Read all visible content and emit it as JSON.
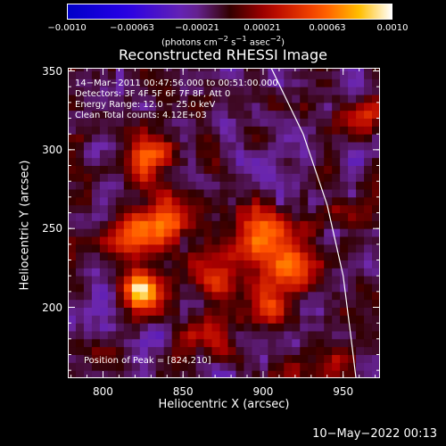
{
  "colorbar": {
    "ticks": [
      "−0.0010",
      "−0.00063",
      "−0.00021",
      "0.00021",
      "0.00063",
      "0.0010"
    ],
    "units_html": "(photons cm<sup>−2</sup> s<sup>−1</sup> asec<sup>−2</sup>)"
  },
  "annotations": {
    "line1": "14−Mar−2011 00:47:56.000 to 00:51:00.000",
    "line2": "Detectors: 3F 4F 5F 6F 7F 8F, Att 0",
    "line3": "Energy Range: 12.0 − 25.0 keV",
    "line4": "Clean     Total counts: 4.12E+03",
    "peak": "Position of Peak = [824,210]"
  },
  "footer": {
    "date": "10−May−2022 00:13"
  },
  "chart_data": {
    "type": "heatmap",
    "title": "Reconstructed RHESSI Image",
    "xlabel": "Heliocentric X (arcsec)",
    "ylabel": "Heliocentric Y (arcsec)",
    "xlim": [
      778,
      973
    ],
    "ylim": [
      155,
      352
    ],
    "zlim": [
      -0.001,
      0.001
    ],
    "xticks": [
      800,
      850,
      900,
      950
    ],
    "yticks": [
      200,
      250,
      300,
      350
    ],
    "limb_curve": [
      [
        905,
        352
      ],
      [
        925,
        310
      ],
      [
        940,
        265
      ],
      [
        950,
        220
      ],
      [
        955,
        180
      ],
      [
        958,
        155
      ]
    ],
    "peak": [
      824,
      210
    ],
    "sources": [
      {
        "x": 824,
        "y": 210,
        "amplitude": 0.001,
        "sigma": 9
      },
      {
        "x": 835,
        "y": 255,
        "amplitude": 0.0007,
        "sigma": 12
      },
      {
        "x": 830,
        "y": 295,
        "amplitude": 0.00055,
        "sigma": 10
      },
      {
        "x": 815,
        "y": 245,
        "amplitude": 0.0005,
        "sigma": 10
      },
      {
        "x": 900,
        "y": 245,
        "amplitude": 0.00065,
        "sigma": 13
      },
      {
        "x": 905,
        "y": 205,
        "amplitude": 0.0006,
        "sigma": 11
      },
      {
        "x": 920,
        "y": 225,
        "amplitude": 0.0005,
        "sigma": 10
      },
      {
        "x": 870,
        "y": 215,
        "amplitude": 0.00045,
        "sigma": 10
      },
      {
        "x": 870,
        "y": 185,
        "amplitude": 0.0004,
        "sigma": 10
      },
      {
        "x": 945,
        "y": 165,
        "amplitude": 0.0004,
        "sigma": 8
      },
      {
        "x": 965,
        "y": 320,
        "amplitude": 0.0006,
        "sigma": 8
      },
      {
        "x": 960,
        "y": 260,
        "amplitude": 0.00035,
        "sigma": 8
      }
    ]
  }
}
